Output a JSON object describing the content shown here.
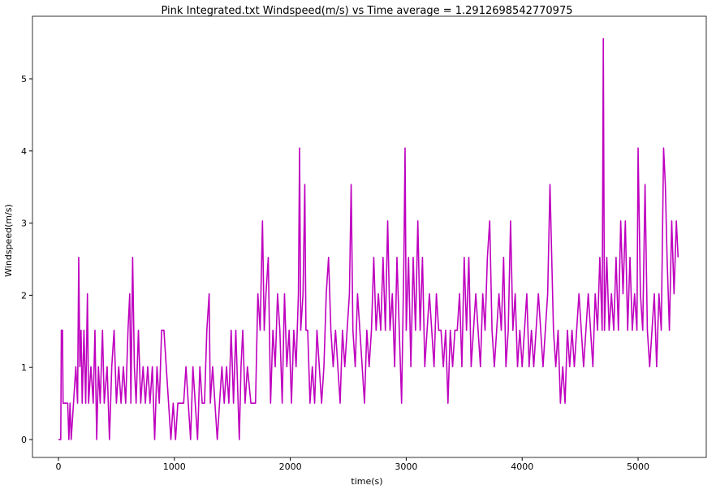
{
  "chart_data": {
    "type": "line",
    "title": "Pink Integrated.txt  Windspeed(m/s) vs Time  average = 1.2912698542770975",
    "x_label": "time(s)",
    "y_label": "Windspeed(m/s)",
    "xlim": [
      -224,
      5588
    ],
    "ylim": [
      -0.248,
      5.867
    ],
    "xticks": [
      0,
      1000,
      2000,
      3000,
      4000,
      5000
    ],
    "yticks": [
      0,
      1,
      2,
      3,
      4,
      5
    ],
    "grid": false,
    "series": [
      {
        "color": "#bf00bf",
        "x": [
          0,
          20,
          25,
          35,
          40,
          80,
          90,
          100,
          110,
          130,
          150,
          165,
          175,
          185,
          195,
          205,
          220,
          235,
          250,
          260,
          280,
          300,
          315,
          330,
          345,
          360,
          380,
          395,
          420,
          440,
          460,
          480,
          500,
          520,
          540,
          560,
          580,
          600,
          615,
          625,
          640,
          655,
          670,
          690,
          710,
          730,
          750,
          770,
          790,
          810,
          830,
          850,
          870,
          890,
          910,
          930,
          950,
          970,
          990,
          1010,
          1030,
          1060,
          1080,
          1100,
          1120,
          1140,
          1160,
          1180,
          1200,
          1220,
          1240,
          1260,
          1280,
          1300,
          1310,
          1330,
          1350,
          1370,
          1390,
          1410,
          1430,
          1450,
          1470,
          1490,
          1510,
          1530,
          1550,
          1560,
          1575,
          1590,
          1610,
          1630,
          1660,
          1700,
          1720,
          1740,
          1760,
          1775,
          1790,
          1810,
          1830,
          1850,
          1870,
          1890,
          1910,
          1930,
          1950,
          1970,
          1990,
          2010,
          2030,
          2050,
          2070,
          2080,
          2090,
          2110,
          2125,
          2135,
          2150,
          2170,
          2190,
          2210,
          2230,
          2250,
          2270,
          2290,
          2310,
          2330,
          2350,
          2370,
          2390,
          2410,
          2430,
          2450,
          2470,
          2490,
          2510,
          2525,
          2540,
          2560,
          2580,
          2600,
          2620,
          2640,
          2660,
          2680,
          2700,
          2720,
          2740,
          2760,
          2780,
          2800,
          2820,
          2840,
          2860,
          2880,
          2900,
          2920,
          2940,
          2960,
          2980,
          2990,
          3000,
          3020,
          3040,
          3060,
          3080,
          3100,
          3120,
          3140,
          3160,
          3180,
          3200,
          3220,
          3240,
          3260,
          3280,
          3300,
          3320,
          3340,
          3360,
          3380,
          3400,
          3420,
          3440,
          3460,
          3480,
          3500,
          3520,
          3540,
          3560,
          3580,
          3600,
          3620,
          3640,
          3660,
          3680,
          3700,
          3720,
          3740,
          3760,
          3780,
          3800,
          3820,
          3840,
          3860,
          3880,
          3900,
          3920,
          3940,
          3960,
          3980,
          4000,
          4020,
          4040,
          4060,
          4080,
          4100,
          4120,
          4140,
          4160,
          4180,
          4200,
          4220,
          4240,
          4255,
          4270,
          4290,
          4310,
          4330,
          4350,
          4370,
          4390,
          4410,
          4430,
          4450,
          4470,
          4490,
          4510,
          4530,
          4550,
          4570,
          4590,
          4610,
          4630,
          4650,
          4670,
          4690,
          4700,
          4710,
          4730,
          4750,
          4770,
          4790,
          4810,
          4830,
          4850,
          4870,
          4890,
          4910,
          4930,
          4950,
          4970,
          4990,
          5000,
          5020,
          5040,
          5060,
          5080,
          5100,
          5120,
          5140,
          5160,
          5180,
          5200,
          5220,
          5235,
          5250,
          5270,
          5290,
          5310,
          5330,
          5345
        ],
        "values": [
          0,
          0,
          1.515,
          1.515,
          0.505,
          0.505,
          0,
          0.505,
          0,
          0.505,
          1.01,
          0.505,
          2.525,
          1.01,
          1.515,
          0.505,
          1.515,
          0.505,
          2.02,
          0.505,
          1.01,
          0.505,
          1.515,
          0,
          1.01,
          0.505,
          1.515,
          0.505,
          1.01,
          0,
          1.01,
          1.515,
          0.505,
          1.01,
          0.505,
          1.01,
          0.505,
          1.515,
          2.02,
          0.505,
          2.525,
          1.01,
          0.505,
          1.515,
          0.505,
          1.01,
          0.505,
          1.01,
          0.505,
          1.01,
          0,
          1.01,
          0.505,
          1.515,
          1.515,
          1.01,
          0.505,
          0,
          0.505,
          0,
          0.505,
          0.505,
          0.505,
          1.01,
          0.505,
          0,
          1.01,
          0.505,
          0,
          1.01,
          0.505,
          0.505,
          1.515,
          2.02,
          0.505,
          1.01,
          0.505,
          0,
          0.505,
          1.01,
          0.505,
          1.01,
          0.505,
          1.515,
          0.505,
          1.515,
          0.505,
          0,
          1.01,
          1.515,
          0.505,
          1.01,
          0.505,
          0.505,
          2.02,
          1.515,
          3.03,
          1.515,
          2.02,
          2.525,
          0.505,
          1.515,
          1.01,
          2.02,
          1.515,
          0.505,
          2.02,
          1.01,
          1.515,
          0.505,
          1.515,
          1.01,
          2.02,
          4.04,
          1.515,
          2.02,
          3.535,
          1.515,
          1.515,
          0.505,
          1.01,
          0.505,
          1.515,
          1.01,
          0.505,
          1.01,
          2.02,
          2.525,
          1.515,
          1.01,
          1.515,
          1.01,
          0.505,
          1.515,
          1.01,
          1.515,
          2.02,
          3.535,
          1.515,
          1.01,
          2.02,
          1.515,
          1.01,
          0.505,
          1.515,
          1.01,
          1.515,
          2.525,
          1.515,
          2.02,
          1.515,
          2.525,
          1.515,
          3.03,
          1.515,
          2.02,
          1.01,
          2.525,
          1.515,
          0.505,
          2.525,
          4.04,
          1.515,
          2.525,
          1.01,
          2.525,
          1.515,
          3.03,
          1.515,
          2.525,
          1.01,
          1.515,
          2.02,
          1.515,
          1.01,
          2.02,
          1.515,
          1.515,
          1.01,
          1.515,
          0.505,
          1.515,
          1.01,
          1.515,
          1.515,
          2.02,
          1.01,
          2.525,
          1.515,
          2.525,
          1.01,
          1.515,
          2.02,
          1.515,
          1.01,
          2.02,
          1.515,
          2.525,
          3.03,
          1.515,
          1.01,
          1.515,
          2.02,
          1.515,
          2.525,
          1.01,
          1.515,
          3.03,
          1.515,
          2.02,
          1.01,
          1.515,
          1.01,
          1.515,
          2.02,
          1.01,
          1.515,
          1.01,
          1.515,
          2.02,
          1.515,
          1.01,
          1.515,
          2.02,
          3.535,
          2.525,
          1.515,
          1.01,
          1.515,
          0.505,
          1.01,
          0.505,
          1.515,
          1.01,
          1.515,
          1.01,
          1.515,
          2.02,
          1.515,
          1.01,
          1.515,
          2.02,
          1.515,
          1.01,
          2.02,
          1.515,
          2.525,
          1.515,
          5.555,
          1.515,
          2.525,
          1.515,
          2.02,
          1.515,
          2.525,
          1.515,
          3.03,
          2.02,
          3.03,
          1.515,
          2.525,
          1.515,
          2.02,
          1.515,
          4.04,
          2.02,
          1.515,
          3.535,
          1.515,
          1.01,
          1.515,
          2.02,
          1.01,
          2.02,
          1.515,
          4.04,
          3.535,
          2.525,
          1.515,
          3.03,
          2.02,
          3.03,
          2.525
        ]
      }
    ]
  }
}
